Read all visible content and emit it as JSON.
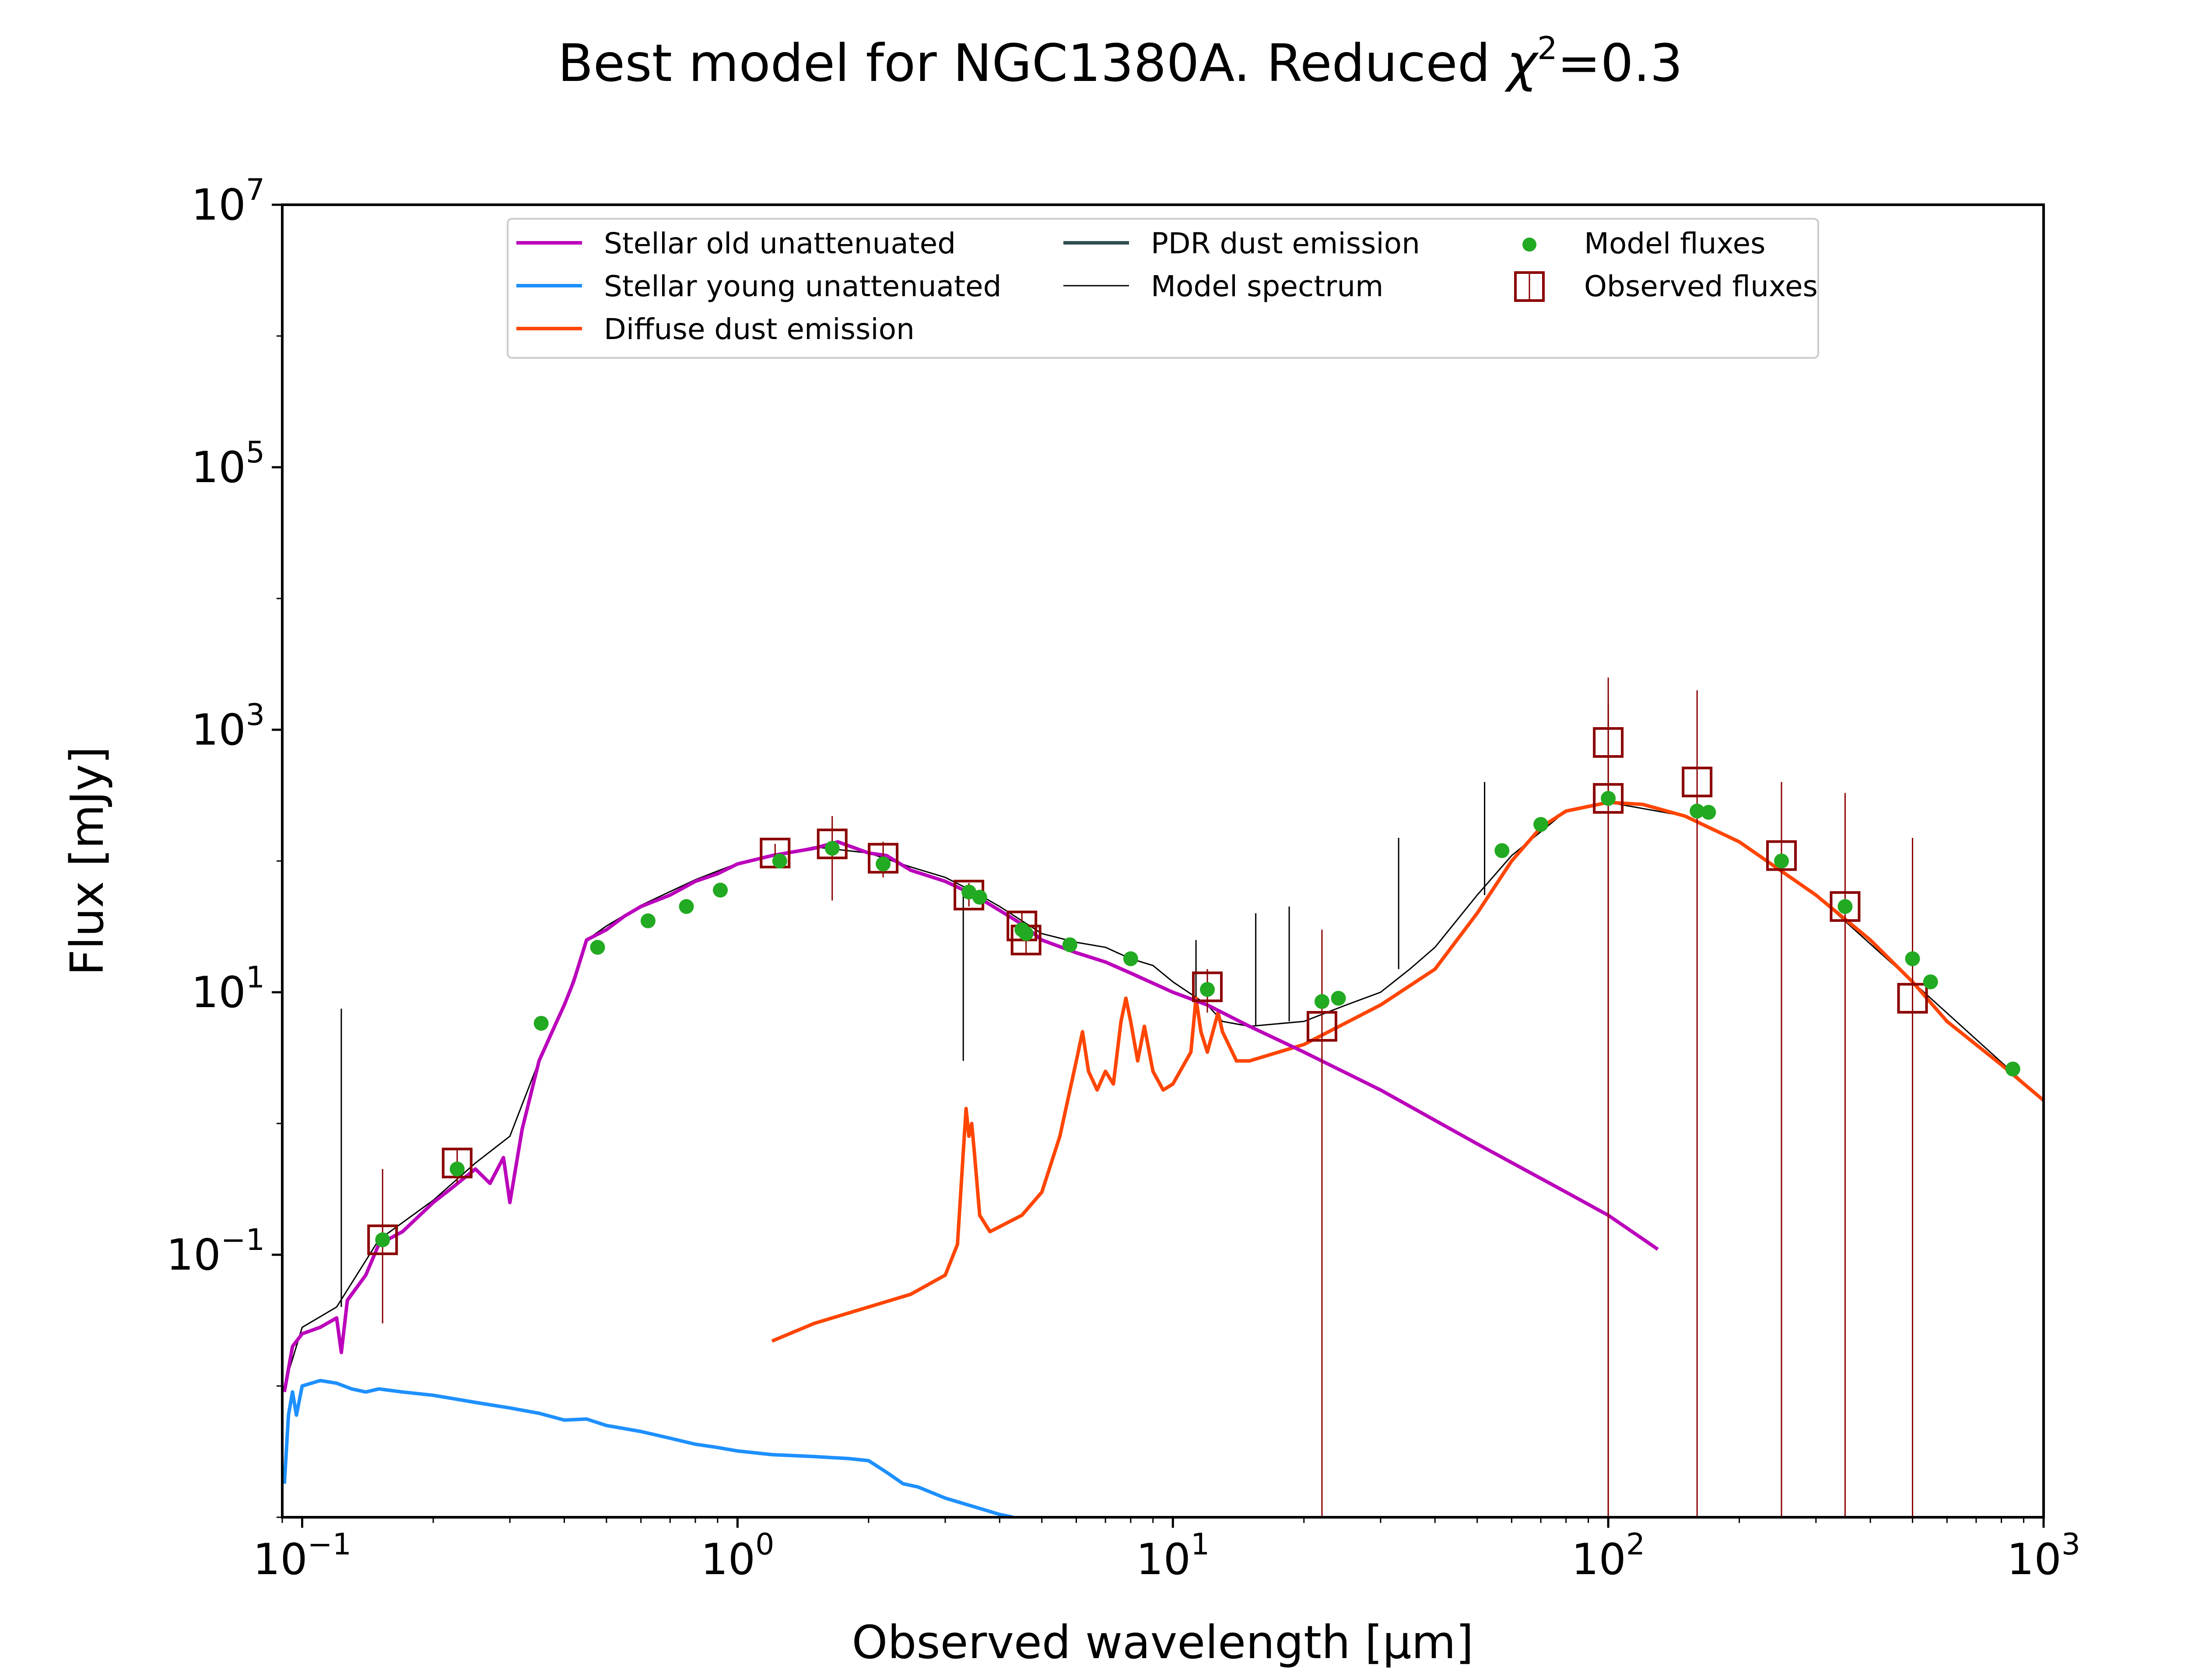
{
  "chart_data": {
    "type": "line",
    "title": "Best model for NGC1380A. Reduced χ²=0.3",
    "title_main": "Best model for NGC1380A. Reduced ",
    "title_chi": "χ",
    "title_sup": "2",
    "title_end": "=0.3",
    "xlabel": "Observed wavelength [μm]",
    "ylabel": "Flux [mJy]",
    "xscale": "log",
    "yscale": "log",
    "xlim": [
      0.09,
      1000
    ],
    "ylim": [
      0.001,
      10000000
    ],
    "x_ticks": [
      {
        "value": 0.1,
        "base": "10",
        "exp": "−1"
      },
      {
        "value": 1,
        "base": "10",
        "exp": "0"
      },
      {
        "value": 10,
        "base": "10",
        "exp": "1"
      },
      {
        "value": 100,
        "base": "10",
        "exp": "2"
      },
      {
        "value": 1000,
        "base": "10",
        "exp": "3"
      }
    ],
    "y_ticks": [
      {
        "value": 0.1,
        "base": "10",
        "exp": "−1"
      },
      {
        "value": 10,
        "base": "10",
        "exp": "1"
      },
      {
        "value": 1000,
        "base": "10",
        "exp": "3"
      },
      {
        "value": 100000,
        "base": "10",
        "exp": "5"
      },
      {
        "value": 10000000,
        "base": "10",
        "exp": "7"
      }
    ],
    "legend": {
      "position": "upper-center",
      "entries": [
        {
          "label": "Stellar old unattenuated",
          "kind": "line",
          "color": "#bb00bb"
        },
        {
          "label": "Stellar young unattenuated",
          "kind": "line",
          "color": "#1e90ff"
        },
        {
          "label": "Diffuse dust emission",
          "kind": "line",
          "color": "#ff4500"
        },
        {
          "label": "PDR dust emission",
          "kind": "line",
          "color": "#2f4f4f"
        },
        {
          "label": "Model spectrum",
          "kind": "thinline",
          "color": "#000000"
        },
        {
          "label": "Model fluxes",
          "kind": "dot",
          "color": "#22aa22"
        },
        {
          "label": "Observed fluxes",
          "kind": "square",
          "color": "#8b0000"
        }
      ]
    },
    "series": [
      {
        "name": "Stellar old unattenuated",
        "color": "#bb00bb",
        "points": [
          [
            0.091,
            0.009
          ],
          [
            0.095,
            0.02
          ],
          [
            0.1,
            0.025
          ],
          [
            0.11,
            0.028
          ],
          [
            0.12,
            0.033
          ],
          [
            0.123,
            0.018
          ],
          [
            0.127,
            0.045
          ],
          [
            0.14,
            0.07
          ],
          [
            0.15,
            0.12
          ],
          [
            0.17,
            0.15
          ],
          [
            0.2,
            0.25
          ],
          [
            0.22,
            0.32
          ],
          [
            0.25,
            0.45
          ],
          [
            0.27,
            0.35
          ],
          [
            0.29,
            0.55
          ],
          [
            0.3,
            0.25
          ],
          [
            0.32,
            0.9
          ],
          [
            0.35,
            3
          ],
          [
            0.38,
            5.5
          ],
          [
            0.4,
            8
          ],
          [
            0.42,
            12
          ],
          [
            0.45,
            25
          ],
          [
            0.5,
            30
          ],
          [
            0.55,
            38
          ],
          [
            0.6,
            45
          ],
          [
            0.7,
            55
          ],
          [
            0.8,
            70
          ],
          [
            0.9,
            80
          ],
          [
            1.0,
            95
          ],
          [
            1.2,
            110
          ],
          [
            1.5,
            125
          ],
          [
            1.7,
            140
          ],
          [
            2.0,
            115
          ],
          [
            2.2,
            110
          ],
          [
            2.5,
            85
          ],
          [
            3.0,
            70
          ],
          [
            3.5,
            55
          ],
          [
            4.0,
            42
          ],
          [
            4.5,
            33
          ],
          [
            5,
            25
          ],
          [
            6,
            20
          ],
          [
            7,
            17
          ],
          [
            8,
            14
          ],
          [
            10,
            10
          ],
          [
            12,
            8
          ],
          [
            15,
            5.5
          ],
          [
            20,
            3.5
          ],
          [
            30,
            1.8
          ],
          [
            50,
            0.7
          ],
          [
            80,
            0.3
          ],
          [
            100,
            0.2
          ],
          [
            130,
            0.11
          ]
        ]
      },
      {
        "name": "Stellar young unattenuated",
        "color": "#1e90ff",
        "points": [
          [
            0.091,
            0.0018
          ],
          [
            0.093,
            0.006
          ],
          [
            0.095,
            0.009
          ],
          [
            0.097,
            0.006
          ],
          [
            0.1,
            0.01
          ],
          [
            0.11,
            0.011
          ],
          [
            0.12,
            0.0105
          ],
          [
            0.13,
            0.0095
          ],
          [
            0.14,
            0.009
          ],
          [
            0.15,
            0.0095
          ],
          [
            0.17,
            0.009
          ],
          [
            0.2,
            0.0085
          ],
          [
            0.25,
            0.0075
          ],
          [
            0.3,
            0.0068
          ],
          [
            0.35,
            0.0062
          ],
          [
            0.4,
            0.0055
          ],
          [
            0.45,
            0.0056
          ],
          [
            0.5,
            0.005
          ],
          [
            0.6,
            0.0045
          ],
          [
            0.7,
            0.004
          ],
          [
            0.8,
            0.0036
          ],
          [
            0.9,
            0.0034
          ],
          [
            1.0,
            0.0032
          ],
          [
            1.2,
            0.003
          ],
          [
            1.5,
            0.0029
          ],
          [
            1.8,
            0.0028
          ],
          [
            2.0,
            0.0027
          ],
          [
            2.2,
            0.0022
          ],
          [
            2.4,
            0.0018
          ],
          [
            2.6,
            0.0017
          ],
          [
            3.0,
            0.0014
          ],
          [
            3.5,
            0.0012
          ],
          [
            4.0,
            0.00105
          ],
          [
            4.3,
            0.001
          ]
        ]
      },
      {
        "name": "Diffuse dust emission",
        "color": "#ff4500",
        "points": [
          [
            1.2,
            0.022
          ],
          [
            1.5,
            0.03
          ],
          [
            2.0,
            0.04
          ],
          [
            2.5,
            0.05
          ],
          [
            3.0,
            0.07
          ],
          [
            3.2,
            0.12
          ],
          [
            3.3,
            0.6
          ],
          [
            3.35,
            1.3
          ],
          [
            3.4,
            0.8
          ],
          [
            3.45,
            1.0
          ],
          [
            3.5,
            0.6
          ],
          [
            3.6,
            0.2
          ],
          [
            3.8,
            0.15
          ],
          [
            4.5,
            0.2
          ],
          [
            5.0,
            0.3
          ],
          [
            5.5,
            0.8
          ],
          [
            6.0,
            3
          ],
          [
            6.2,
            5
          ],
          [
            6.4,
            2.5
          ],
          [
            6.7,
            1.8
          ],
          [
            7.0,
            2.5
          ],
          [
            7.3,
            2.0
          ],
          [
            7.6,
            6
          ],
          [
            7.8,
            9
          ],
          [
            8.0,
            6
          ],
          [
            8.3,
            3
          ],
          [
            8.6,
            5.5
          ],
          [
            9.0,
            2.5
          ],
          [
            9.5,
            1.8
          ],
          [
            10,
            2.0
          ],
          [
            11,
            3.5
          ],
          [
            11.3,
            9
          ],
          [
            11.6,
            5
          ],
          [
            12.0,
            3.5
          ],
          [
            12.7,
            7
          ],
          [
            13,
            5
          ],
          [
            14,
            3.0
          ],
          [
            15,
            3.0
          ],
          [
            20,
            4
          ],
          [
            30,
            8
          ],
          [
            40,
            15
          ],
          [
            50,
            40
          ],
          [
            60,
            100
          ],
          [
            70,
            180
          ],
          [
            80,
            240
          ],
          [
            100,
            280
          ],
          [
            120,
            270
          ],
          [
            150,
            220
          ],
          [
            200,
            140
          ],
          [
            300,
            55
          ],
          [
            400,
            25
          ],
          [
            500,
            12
          ],
          [
            600,
            6
          ],
          [
            800,
            2.8
          ],
          [
            1000,
            1.5
          ]
        ]
      },
      {
        "name": "Model spectrum",
        "color": "#000000",
        "points": [
          [
            0.091,
            0.01
          ],
          [
            0.1,
            0.028
          ],
          [
            0.12,
            0.04
          ],
          [
            0.15,
            0.13
          ],
          [
            0.2,
            0.26
          ],
          [
            0.25,
            0.5
          ],
          [
            0.3,
            0.8
          ],
          [
            0.35,
            3
          ],
          [
            0.4,
            8
          ],
          [
            0.45,
            25
          ],
          [
            0.5,
            32
          ],
          [
            0.6,
            46
          ],
          [
            0.8,
            72
          ],
          [
            1.0,
            96
          ],
          [
            1.5,
            128
          ],
          [
            2.0,
            115
          ],
          [
            2.5,
            90
          ],
          [
            3.0,
            75
          ],
          [
            3.5,
            58
          ],
          [
            4.0,
            45
          ],
          [
            5,
            28
          ],
          [
            6,
            24
          ],
          [
            7,
            22
          ],
          [
            8,
            18
          ],
          [
            9,
            16
          ],
          [
            10,
            12
          ],
          [
            12,
            8
          ],
          [
            13,
            6
          ],
          [
            15,
            5.5
          ],
          [
            20,
            6
          ],
          [
            25,
            8
          ],
          [
            30,
            10
          ],
          [
            35,
            15
          ],
          [
            40,
            22
          ],
          [
            50,
            55
          ],
          [
            60,
            110
          ],
          [
            80,
            240
          ],
          [
            100,
            280
          ],
          [
            150,
            220
          ],
          [
            200,
            140
          ],
          [
            300,
            55
          ],
          [
            500,
            12
          ],
          [
            1000,
            1.5
          ]
        ],
        "lines": [
          [
            0.123,
            7.5
          ],
          [
            3.3,
            3
          ],
          [
            11.3,
            25
          ],
          [
            15.5,
            40
          ],
          [
            18.5,
            45
          ],
          [
            33,
            150
          ],
          [
            52,
            400
          ],
          [
            100,
            1600
          ]
        ]
      }
    ],
    "model_fluxes": [
      [
        0.153,
        0.13
      ],
      [
        0.227,
        0.45
      ],
      [
        0.354,
        5.8
      ],
      [
        0.477,
        22
      ],
      [
        0.623,
        35
      ],
      [
        0.763,
        45
      ],
      [
        0.913,
        60
      ],
      [
        1.25,
        100
      ],
      [
        1.65,
        125
      ],
      [
        2.16,
        95
      ],
      [
        3.4,
        58
      ],
      [
        3.6,
        53
      ],
      [
        4.5,
        30
      ],
      [
        4.6,
        28
      ],
      [
        5.8,
        23
      ],
      [
        8.0,
        18
      ],
      [
        12,
        10.5
      ],
      [
        22,
        8.5
      ],
      [
        24,
        9.0
      ],
      [
        57,
        120
      ],
      [
        70,
        190
      ],
      [
        100,
        300
      ],
      [
        160,
        240
      ],
      [
        170,
        235
      ],
      [
        250,
        100
      ],
      [
        350,
        45
      ],
      [
        500,
        18
      ],
      [
        550,
        12
      ],
      [
        850,
        2.6
      ]
    ],
    "observed_fluxes": [
      {
        "x": 0.153,
        "y": 0.13,
        "lo": 0.03,
        "hi": 0.45
      },
      {
        "x": 0.227,
        "y": 0.5,
        "lo": 0.35,
        "hi": 0.65
      },
      {
        "x": 1.22,
        "y": 115,
        "lo": 95,
        "hi": 135
      },
      {
        "x": 1.65,
        "y": 135,
        "lo": 50,
        "hi": 220
      },
      {
        "x": 2.16,
        "y": 105,
        "lo": 75,
        "hi": 140
      },
      {
        "x": 3.4,
        "y": 55,
        "lo": 45,
        "hi": 68
      },
      {
        "x": 4.5,
        "y": 32,
        "lo": 25,
        "hi": 40
      },
      {
        "x": 4.6,
        "y": 25,
        "lo": 20,
        "hi": 31
      },
      {
        "x": 12,
        "y": 11,
        "lo": 7,
        "hi": 15
      },
      {
        "x": 22,
        "y": 5.5,
        "lo": 0.001,
        "hi": 30
      },
      {
        "x": 100,
        "y": 800,
        "lo": 0.001,
        "hi": 2500
      },
      {
        "x": 100,
        "y": 300,
        "lo": 0.001,
        "hi": 1500
      },
      {
        "x": 160,
        "y": 400,
        "lo": 0.001,
        "hi": 2000
      },
      {
        "x": 250,
        "y": 110,
        "lo": 0.001,
        "hi": 400
      },
      {
        "x": 350,
        "y": 45,
        "lo": 0.001,
        "hi": 330
      },
      {
        "x": 500,
        "y": 9,
        "lo": 0.001,
        "hi": 150
      }
    ]
  }
}
